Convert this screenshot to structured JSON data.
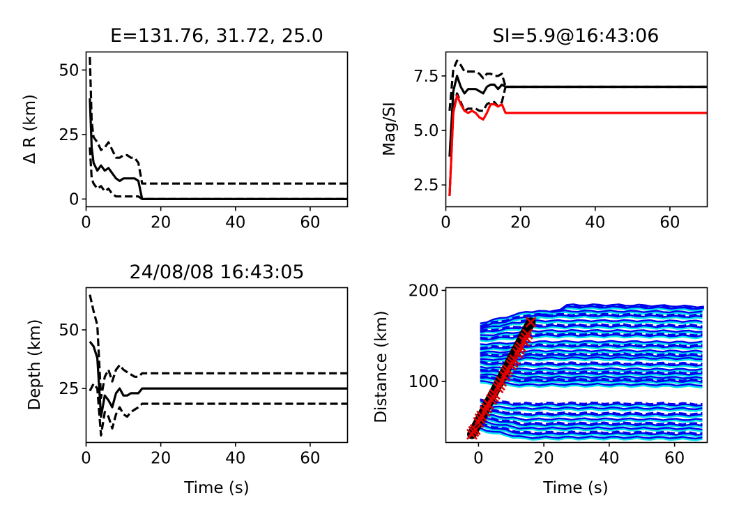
{
  "chart_data": [
    {
      "id": "dr",
      "type": "line",
      "title": "E=131.76, 31.72, 25.0",
      "xlabel": "",
      "ylabel": "Δ R (km)",
      "xlim": [
        0,
        70
      ],
      "ylim": [
        -3,
        57
      ],
      "xticks": [
        0,
        20,
        40,
        60
      ],
      "yticks": [
        0,
        25,
        50
      ],
      "series": [
        {
          "color": "#000000",
          "dash": "solid",
          "x": [
            1,
            1.5,
            2,
            3,
            4,
            5,
            6,
            7,
            8,
            9,
            10,
            11,
            12,
            13,
            14,
            15,
            16,
            70
          ],
          "y": [
            39,
            20,
            14,
            11,
            13,
            11,
            12,
            10,
            8,
            7,
            8,
            8,
            8,
            8,
            7,
            0,
            0,
            0
          ]
        },
        {
          "color": "#000000",
          "dash": "dashed",
          "x": [
            1,
            1.5,
            2,
            3,
            4,
            5,
            6,
            7,
            8,
            9,
            10,
            11,
            12,
            13,
            14,
            15,
            70
          ],
          "y": [
            55,
            30,
            24,
            22,
            19,
            20,
            22,
            19,
            16,
            16,
            17,
            17,
            16,
            16,
            14,
            6,
            6
          ]
        },
        {
          "color": "#000000",
          "dash": "dashed",
          "x": [
            1,
            1.5,
            2,
            3,
            4,
            5,
            6,
            7,
            8,
            9,
            10,
            11,
            12,
            13,
            14,
            15,
            16,
            70
          ],
          "y": [
            20,
            8,
            6,
            4,
            5,
            3,
            4,
            2,
            1,
            1,
            1,
            1,
            1,
            1,
            1,
            0,
            0,
            0
          ]
        }
      ]
    },
    {
      "id": "mag",
      "type": "line",
      "title": "SI=5.9@16:43:06",
      "xlabel": "",
      "ylabel": "Mag/SI",
      "xlim": [
        0,
        70
      ],
      "ylim": [
        1.5,
        8.6
      ],
      "xticks": [
        0,
        20,
        40,
        60
      ],
      "yticks": [
        2.5,
        5.0,
        7.5
      ],
      "ytickformat": "1dp",
      "series": [
        {
          "color": "#000000",
          "dash": "solid",
          "x": [
            1,
            2,
            3,
            4,
            5,
            6,
            7,
            8,
            9,
            10,
            11,
            12,
            13,
            14,
            15,
            16,
            70
          ],
          "y": [
            3.8,
            6.8,
            7.5,
            7.0,
            6.7,
            6.9,
            6.9,
            6.9,
            6.8,
            6.7,
            7.0,
            7.1,
            7.1,
            6.9,
            7.1,
            7.0,
            7.0
          ]
        },
        {
          "color": "#000000",
          "dash": "dashed",
          "x": [
            1,
            2,
            3,
            4,
            5,
            6,
            7,
            8,
            9,
            10,
            11,
            12,
            13,
            14,
            15,
            16,
            70
          ],
          "y": [
            5.9,
            7.8,
            8.2,
            8.0,
            7.7,
            7.7,
            7.7,
            7.7,
            7.6,
            7.4,
            7.6,
            7.6,
            7.5,
            7.5,
            7.6,
            7.0,
            7.0
          ]
        },
        {
          "color": "#000000",
          "dash": "dashed",
          "x": [
            1,
            2,
            3,
            4,
            5,
            6,
            7,
            8,
            9,
            10,
            11,
            12,
            13,
            14,
            15,
            16,
            70
          ],
          "y": [
            2.0,
            5.9,
            6.7,
            6.3,
            5.9,
            6.0,
            6.0,
            6.0,
            5.9,
            5.9,
            6.2,
            6.3,
            6.3,
            6.1,
            6.3,
            7.0,
            7.0
          ]
        },
        {
          "color": "#ff0000",
          "dash": "solid",
          "x": [
            1,
            2,
            3,
            4,
            5,
            6,
            7,
            8,
            9,
            10,
            11,
            12,
            13,
            14,
            15,
            16,
            70
          ],
          "y": [
            2.0,
            5.8,
            6.6,
            6.2,
            5.9,
            5.8,
            5.9,
            5.8,
            5.6,
            5.5,
            5.8,
            6.2,
            6.2,
            6.1,
            6.2,
            5.8,
            5.8
          ]
        }
      ]
    },
    {
      "id": "depth",
      "type": "line",
      "title": "24/08/08 16:43:05",
      "xlabel": "Time (s)",
      "ylabel": "Depth (km)",
      "xlim": [
        0,
        70
      ],
      "ylim": [
        2,
        68
      ],
      "xticks": [
        0,
        20,
        40,
        60
      ],
      "yticks": [
        25,
        50
      ],
      "series": [
        {
          "color": "#000000",
          "dash": "solid",
          "x": [
            1,
            2,
            3,
            4,
            5,
            6,
            7,
            8,
            9,
            10,
            11,
            12,
            13,
            14,
            15,
            16,
            70
          ],
          "y": [
            45,
            43,
            38,
            13,
            22,
            20,
            17,
            23,
            25,
            22,
            22,
            23,
            23,
            23,
            25,
            25,
            25
          ]
        },
        {
          "color": "#000000",
          "dash": "dashed",
          "x": [
            1,
            2,
            3,
            4,
            5,
            6,
            7,
            8,
            9,
            10,
            11,
            12,
            13,
            14,
            15,
            70
          ],
          "y": [
            65,
            58,
            52,
            21,
            30,
            33,
            28,
            33,
            35,
            33,
            32,
            31,
            30,
            30,
            31.5,
            31.5
          ]
        },
        {
          "color": "#000000",
          "dash": "dashed",
          "x": [
            1,
            2,
            3,
            4,
            5,
            6,
            7,
            8,
            9,
            10,
            11,
            12,
            13,
            14,
            15,
            70
          ],
          "y": [
            24,
            27,
            25,
            5,
            15,
            13,
            8,
            14,
            17,
            14,
            13,
            15,
            16,
            17,
            18.5,
            18.5
          ]
        }
      ]
    },
    {
      "id": "dist",
      "type": "line",
      "title": "",
      "xlabel": "Time (s)",
      "ylabel": "Distance (km)",
      "xlim": [
        -10,
        70
      ],
      "ylim": [
        33,
        203
      ],
      "xticks": [
        0,
        20,
        40,
        60
      ],
      "yticks": [
        100,
        200
      ],
      "bands": [
        {
          "start": -0.5,
          "y0": 44,
          "y1": 164,
          "rise": 0
        },
        {
          "start": 13,
          "y0": 166,
          "y1": 182,
          "rise": 5
        },
        {
          "start": 13,
          "y0": 166,
          "y1": 180,
          "rise": 4
        },
        {
          "start": 0.5,
          "y0": 164,
          "y1": 176,
          "rise": 3
        },
        {
          "start": 0.5,
          "y0": 160,
          "y1": 171,
          "rise": 3
        },
        {
          "start": 0.5,
          "y0": 158,
          "y1": 166,
          "rise": 2
        },
        {
          "start": 0.5,
          "y0": 154,
          "y1": 160,
          "rise": 2
        },
        {
          "start": 0.5,
          "y0": 150,
          "y1": 155,
          "rise": 2
        },
        {
          "start": 0.5,
          "y0": 146,
          "y1": 150,
          "rise": 2
        },
        {
          "start": 0.5,
          "y0": 141,
          "y1": 143,
          "rise": 2
        },
        {
          "start": 0.5,
          "y0": 136,
          "y1": 138,
          "rise": 2
        },
        {
          "start": 0.5,
          "y0": 132,
          "y1": 133,
          "rise": 2
        },
        {
          "start": 0.5,
          "y0": 128,
          "y1": 128,
          "rise": 2
        },
        {
          "start": 0.5,
          "y0": 124,
          "y1": 125,
          "rise": 2
        },
        {
          "start": 0.5,
          "y0": 120,
          "y1": 118,
          "rise": 2
        },
        {
          "start": 0.5,
          "y0": 116,
          "y1": 113,
          "rise": 2
        },
        {
          "start": 0.5,
          "y0": 112,
          "y1": 108,
          "rise": 2
        },
        {
          "start": 0.5,
          "y0": 108,
          "y1": 104,
          "rise": 2
        },
        {
          "start": 0.5,
          "y0": 104,
          "y1": 100,
          "rise": 2
        },
        {
          "start": 0.5,
          "y0": 100,
          "y1": 96,
          "rise": 2
        },
        {
          "start": 0.5,
          "y0": 78,
          "y1": 74,
          "rise": 2
        },
        {
          "start": 0.5,
          "y0": 73,
          "y1": 70,
          "rise": 2
        },
        {
          "start": 0.5,
          "y0": 68,
          "y1": 63,
          "rise": 2
        },
        {
          "start": 0.5,
          "y0": 64,
          "y1": 58,
          "rise": 2
        },
        {
          "start": 0.5,
          "y0": 60,
          "y1": 52,
          "rise": 2
        },
        {
          "start": 0.5,
          "y0": 56,
          "y1": 48,
          "rise": 2
        },
        {
          "start": 0.5,
          "y0": 52,
          "y1": 42,
          "rise": 2
        },
        {
          "start": 0.5,
          "y0": 48,
          "y1": 38,
          "rise": 2
        }
      ],
      "picks_line": {
        "color": "#000000",
        "x": [
          -2,
          16
        ],
        "y": [
          42,
          165
        ]
      },
      "picks": {
        "color": "#e00000",
        "x": [
          -2,
          -1,
          0,
          1,
          2,
          3,
          4,
          5,
          6,
          7,
          8,
          9,
          10,
          11,
          12,
          13,
          14,
          15,
          16,
          -1.5,
          0.5,
          2.5,
          4.5,
          6.5,
          8.5,
          10.5,
          12.5,
          14.5
        ],
        "y": [
          42,
          47,
          55,
          62,
          67,
          75,
          80,
          86,
          93,
          100,
          106,
          113,
          118,
          124,
          131,
          138,
          144,
          152,
          165,
          45,
          59,
          71,
          83,
          96,
          110,
          121,
          135,
          148
        ]
      }
    }
  ],
  "colors": {
    "blue": "#0000ee",
    "cyan": "#00e5ee",
    "black": "#000000",
    "red": "#e00000"
  }
}
